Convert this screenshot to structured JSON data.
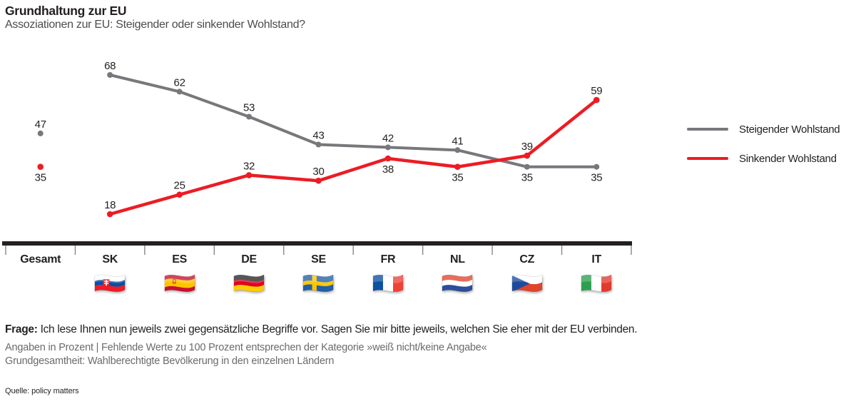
{
  "chart_data": {
    "type": "line",
    "title": "Grundhaltung zur EU",
    "subtitle": "Assoziationen zur EU: Steigender oder sinkender Wohlstand?",
    "categories": [
      "Gesamt",
      "SK",
      "ES",
      "DE",
      "SE",
      "FR",
      "NL",
      "CZ",
      "IT"
    ],
    "category_flags": [
      null,
      "sk",
      "es",
      "de",
      "se",
      "fr",
      "nl",
      "cz",
      "it"
    ],
    "series": [
      {
        "name": "Steigender Wohlstand",
        "color": "#77787B",
        "values": [
          47,
          68,
          62,
          53,
          43,
          42,
          41,
          35,
          35
        ],
        "label_pos": [
          "above",
          "above",
          "above",
          "above",
          "above",
          "above",
          "above",
          "below",
          "below"
        ]
      },
      {
        "name": "Sinkender Wohlstand",
        "color": "#EC1C24",
        "values": [
          35,
          18,
          25,
          32,
          30,
          38,
          35,
          39,
          59
        ],
        "label_pos": [
          "below",
          "above",
          "above",
          "above",
          "above",
          "below",
          "below",
          "above",
          "above"
        ]
      }
    ],
    "line_start_index": 1,
    "xlabel": "",
    "ylabel": "",
    "ylim": [
      0,
      80
    ],
    "grid": false,
    "legend_position": "right",
    "axis_color": "#231F20",
    "tick_color": "#85878A"
  },
  "footer": {
    "question_label": "Frage:",
    "question": "Ich lese Ihnen nun jeweils zwei gegensätzliche Begriffe vor. Sagen Sie mir bitte jeweils, welchen Sie eher mit der EU verbinden.",
    "note1": "Angaben in Prozent | Fehlende Werte zu 100 Prozent entsprechen der Kategorie »weiß nicht/keine Angabe«",
    "note2": "Grundgesamtheit: Wahlberechtigte Bevölkerung in den einzelnen Ländern",
    "source": "Quelle: policy matters"
  }
}
